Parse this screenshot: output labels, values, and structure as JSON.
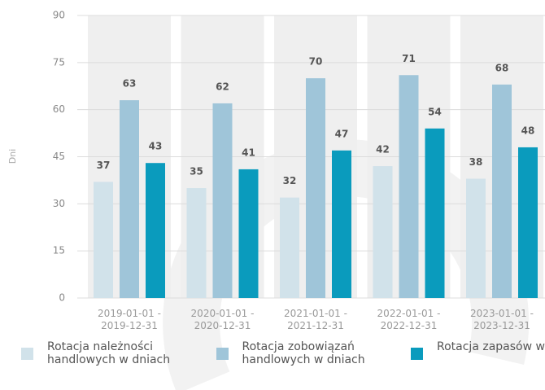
{
  "chart_data": {
    "type": "bar",
    "y_label": "Dni",
    "categories": [
      "2019-01-01 - 2019-12-31",
      "2020-01-01 - 2020-12-31",
      "2021-01-01 - 2021-12-31",
      "2022-01-01 - 2022-12-31",
      "2023-01-01 - 2023-12-31"
    ],
    "series": [
      {
        "name": "Rotacja należności handlowych w dniach",
        "color": "#d1e2ea",
        "values": [
          37,
          35,
          32,
          42,
          38
        ]
      },
      {
        "name": "Rotacja zobowiązań handlowych w dniach",
        "color": "#9fc5d9",
        "values": [
          63,
          62,
          70,
          71,
          68
        ]
      },
      {
        "name": "Rotacja zapasów w dniach",
        "color": "#0a9bbd",
        "values": [
          43,
          41,
          47,
          54,
          48
        ]
      }
    ],
    "ylim": [
      0,
      90
    ],
    "yticks": [
      0,
      15,
      30,
      45,
      60,
      75,
      90
    ],
    "grid": true,
    "legend": "bottom"
  }
}
